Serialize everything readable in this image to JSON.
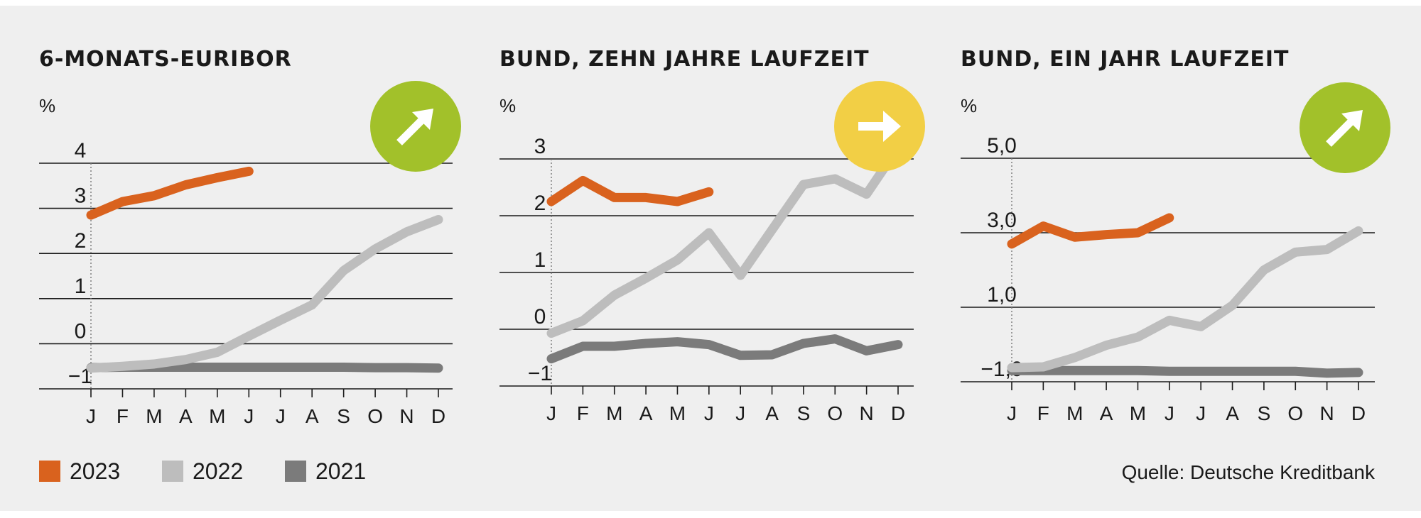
{
  "months": [
    "J",
    "F",
    "M",
    "A",
    "M",
    "J",
    "J",
    "A",
    "S",
    "O",
    "N",
    "D"
  ],
  "colors": {
    "2023": "#d9621e",
    "2022": "#bdbdbd",
    "2021": "#7b7b7b",
    "green": "#a2c12a",
    "yellow": "#f2cf45"
  },
  "legend": [
    {
      "label": "2023",
      "color": "#d9621e"
    },
    {
      "label": "2022",
      "color": "#bdbdbd"
    },
    {
      "label": "2021",
      "color": "#7b7b7b"
    }
  ],
  "source": "Quelle: Deutsche Kreditbank",
  "chart_data": [
    {
      "type": "line",
      "title": "6-MONATS-EURIBOR",
      "unit": "%",
      "ylim": [
        -1,
        4
      ],
      "yticks": [
        4,
        3,
        2,
        1,
        0,
        -1
      ],
      "ytick_labels": [
        "4",
        "3",
        "2",
        "1",
        "0",
        "−1"
      ],
      "trend": {
        "direction": "up",
        "color": "#a2c12a",
        "icon": "arrow-up-right-icon"
      },
      "series": [
        {
          "name": "2023",
          "values": [
            2.85,
            3.15,
            3.28,
            3.52,
            3.68,
            3.82,
            null,
            null,
            null,
            null,
            null,
            null
          ]
        },
        {
          "name": "2022",
          "values": [
            -0.54,
            -0.5,
            -0.45,
            -0.35,
            -0.19,
            0.17,
            0.52,
            0.86,
            1.62,
            2.1,
            2.48,
            2.75
          ]
        },
        {
          "name": "2021",
          "values": [
            -0.53,
            -0.52,
            -0.52,
            -0.52,
            -0.52,
            -0.52,
            -0.52,
            -0.52,
            -0.52,
            -0.53,
            -0.53,
            -0.54
          ]
        }
      ]
    },
    {
      "type": "line",
      "title": "BUND, ZEHN JAHRE LAUFZEIT",
      "unit": "%",
      "ylim": [
        -1,
        3
      ],
      "yticks": [
        3,
        2,
        1,
        0,
        -1
      ],
      "ytick_labels": [
        "3",
        "2",
        "1",
        "0",
        "−1"
      ],
      "trend": {
        "direction": "right",
        "color": "#f2cf45",
        "icon": "arrow-right-icon"
      },
      "series": [
        {
          "name": "2023",
          "values": [
            2.25,
            2.62,
            2.32,
            2.32,
            2.25,
            2.42,
            null,
            null,
            null,
            null,
            null,
            null
          ]
        },
        {
          "name": "2022",
          "values": [
            -0.07,
            0.15,
            0.6,
            0.9,
            1.22,
            1.7,
            0.95,
            1.75,
            2.55,
            2.65,
            2.38,
            3.2
          ]
        },
        {
          "name": "2021",
          "values": [
            -0.52,
            -0.3,
            -0.3,
            -0.25,
            -0.22,
            -0.27,
            -0.46,
            -0.45,
            -0.25,
            -0.17,
            -0.38,
            -0.27
          ]
        }
      ]
    },
    {
      "type": "line",
      "title": "BUND, EIN JAHR LAUFZEIT",
      "unit": "%",
      "ylim": [
        -1,
        5
      ],
      "yticks": [
        5,
        3,
        1,
        -1
      ],
      "ytick_labels": [
        "5,0",
        "3,0",
        "1,0",
        "−1,0"
      ],
      "trend": {
        "direction": "up",
        "color": "#a2c12a",
        "icon": "arrow-up-right-icon"
      },
      "series": [
        {
          "name": "2023",
          "values": [
            2.7,
            3.18,
            2.88,
            2.95,
            3.0,
            3.4,
            null,
            null,
            null,
            null,
            null,
            null
          ]
        },
        {
          "name": "2022",
          "values": [
            -0.62,
            -0.6,
            -0.35,
            -0.02,
            0.2,
            0.65,
            0.48,
            1.05,
            2.0,
            2.48,
            2.55,
            3.05
          ]
        },
        {
          "name": "2021",
          "values": [
            -0.7,
            -0.7,
            -0.7,
            -0.7,
            -0.7,
            -0.72,
            -0.72,
            -0.72,
            -0.72,
            -0.72,
            -0.77,
            -0.75
          ]
        }
      ]
    }
  ]
}
